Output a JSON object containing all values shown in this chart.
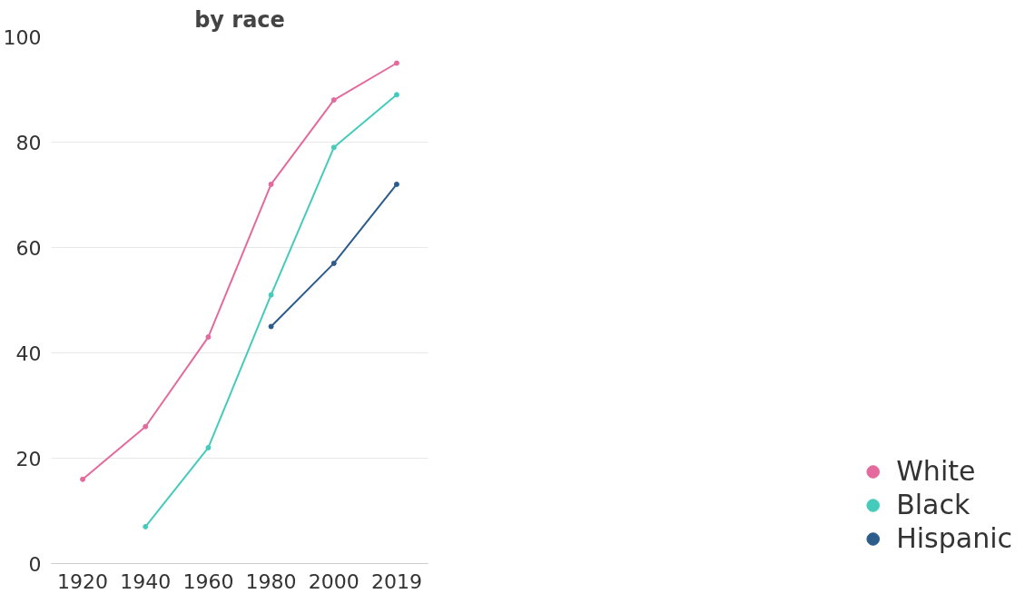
{
  "chart_data": {
    "type": "line",
    "title": "by race",
    "categories": [
      "1920",
      "1940",
      "1960",
      "1980",
      "2000",
      "2019"
    ],
    "series": [
      {
        "name": "White",
        "color": "#e46a9e",
        "values": [
          16,
          26,
          43,
          72,
          88,
          95
        ]
      },
      {
        "name": "Black",
        "color": "#45cbbb",
        "values": [
          null,
          7,
          22,
          51,
          79,
          89
        ]
      },
      {
        "name": "Hispanic",
        "color": "#2b5c8c",
        "values": [
          null,
          null,
          null,
          45,
          57,
          72
        ]
      }
    ],
    "ylim": [
      0,
      100
    ],
    "yticks": [
      0,
      20,
      40,
      60,
      80,
      100
    ],
    "grid": "y",
    "legend": "bottom right",
    "marker": "circle",
    "line_style": "solid"
  }
}
